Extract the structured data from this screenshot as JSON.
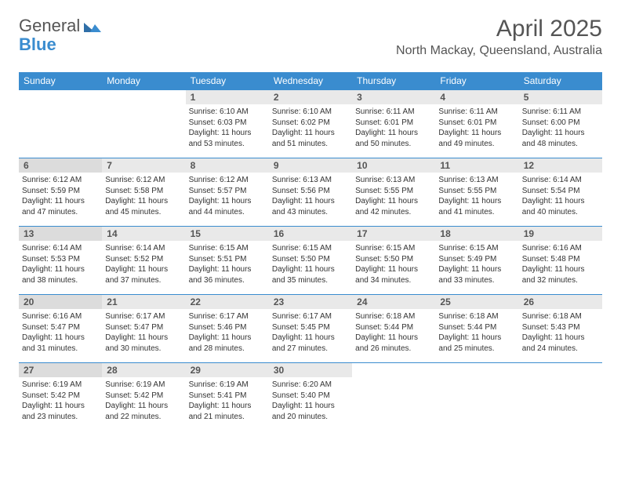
{
  "brand": {
    "part1": "General",
    "part2": "Blue"
  },
  "title": "April 2025",
  "location": "North Mackay, Queensland, Australia",
  "colors": {
    "accent": "#3a8ccf",
    "headerText": "#ffffff",
    "dayNumBg": "#e9e9e9",
    "sundayNumBg": "#dcdcdc",
    "border": "#3a8ccf",
    "text": "#333333",
    "muted": "#555555"
  },
  "dayNames": [
    "Sunday",
    "Monday",
    "Tuesday",
    "Wednesday",
    "Thursday",
    "Friday",
    "Saturday"
  ],
  "weeks": [
    [
      {
        "num": "",
        "lines": []
      },
      {
        "num": "",
        "lines": []
      },
      {
        "num": "1",
        "lines": [
          "Sunrise: 6:10 AM",
          "Sunset: 6:03 PM",
          "Daylight: 11 hours and 53 minutes."
        ]
      },
      {
        "num": "2",
        "lines": [
          "Sunrise: 6:10 AM",
          "Sunset: 6:02 PM",
          "Daylight: 11 hours and 51 minutes."
        ]
      },
      {
        "num": "3",
        "lines": [
          "Sunrise: 6:11 AM",
          "Sunset: 6:01 PM",
          "Daylight: 11 hours and 50 minutes."
        ]
      },
      {
        "num": "4",
        "lines": [
          "Sunrise: 6:11 AM",
          "Sunset: 6:01 PM",
          "Daylight: 11 hours and 49 minutes."
        ]
      },
      {
        "num": "5",
        "lines": [
          "Sunrise: 6:11 AM",
          "Sunset: 6:00 PM",
          "Daylight: 11 hours and 48 minutes."
        ]
      }
    ],
    [
      {
        "num": "6",
        "lines": [
          "Sunrise: 6:12 AM",
          "Sunset: 5:59 PM",
          "Daylight: 11 hours and 47 minutes."
        ]
      },
      {
        "num": "7",
        "lines": [
          "Sunrise: 6:12 AM",
          "Sunset: 5:58 PM",
          "Daylight: 11 hours and 45 minutes."
        ]
      },
      {
        "num": "8",
        "lines": [
          "Sunrise: 6:12 AM",
          "Sunset: 5:57 PM",
          "Daylight: 11 hours and 44 minutes."
        ]
      },
      {
        "num": "9",
        "lines": [
          "Sunrise: 6:13 AM",
          "Sunset: 5:56 PM",
          "Daylight: 11 hours and 43 minutes."
        ]
      },
      {
        "num": "10",
        "lines": [
          "Sunrise: 6:13 AM",
          "Sunset: 5:55 PM",
          "Daylight: 11 hours and 42 minutes."
        ]
      },
      {
        "num": "11",
        "lines": [
          "Sunrise: 6:13 AM",
          "Sunset: 5:55 PM",
          "Daylight: 11 hours and 41 minutes."
        ]
      },
      {
        "num": "12",
        "lines": [
          "Sunrise: 6:14 AM",
          "Sunset: 5:54 PM",
          "Daylight: 11 hours and 40 minutes."
        ]
      }
    ],
    [
      {
        "num": "13",
        "lines": [
          "Sunrise: 6:14 AM",
          "Sunset: 5:53 PM",
          "Daylight: 11 hours and 38 minutes."
        ]
      },
      {
        "num": "14",
        "lines": [
          "Sunrise: 6:14 AM",
          "Sunset: 5:52 PM",
          "Daylight: 11 hours and 37 minutes."
        ]
      },
      {
        "num": "15",
        "lines": [
          "Sunrise: 6:15 AM",
          "Sunset: 5:51 PM",
          "Daylight: 11 hours and 36 minutes."
        ]
      },
      {
        "num": "16",
        "lines": [
          "Sunrise: 6:15 AM",
          "Sunset: 5:50 PM",
          "Daylight: 11 hours and 35 minutes."
        ]
      },
      {
        "num": "17",
        "lines": [
          "Sunrise: 6:15 AM",
          "Sunset: 5:50 PM",
          "Daylight: 11 hours and 34 minutes."
        ]
      },
      {
        "num": "18",
        "lines": [
          "Sunrise: 6:15 AM",
          "Sunset: 5:49 PM",
          "Daylight: 11 hours and 33 minutes."
        ]
      },
      {
        "num": "19",
        "lines": [
          "Sunrise: 6:16 AM",
          "Sunset: 5:48 PM",
          "Daylight: 11 hours and 32 minutes."
        ]
      }
    ],
    [
      {
        "num": "20",
        "lines": [
          "Sunrise: 6:16 AM",
          "Sunset: 5:47 PM",
          "Daylight: 11 hours and 31 minutes."
        ]
      },
      {
        "num": "21",
        "lines": [
          "Sunrise: 6:17 AM",
          "Sunset: 5:47 PM",
          "Daylight: 11 hours and 30 minutes."
        ]
      },
      {
        "num": "22",
        "lines": [
          "Sunrise: 6:17 AM",
          "Sunset: 5:46 PM",
          "Daylight: 11 hours and 28 minutes."
        ]
      },
      {
        "num": "23",
        "lines": [
          "Sunrise: 6:17 AM",
          "Sunset: 5:45 PM",
          "Daylight: 11 hours and 27 minutes."
        ]
      },
      {
        "num": "24",
        "lines": [
          "Sunrise: 6:18 AM",
          "Sunset: 5:44 PM",
          "Daylight: 11 hours and 26 minutes."
        ]
      },
      {
        "num": "25",
        "lines": [
          "Sunrise: 6:18 AM",
          "Sunset: 5:44 PM",
          "Daylight: 11 hours and 25 minutes."
        ]
      },
      {
        "num": "26",
        "lines": [
          "Sunrise: 6:18 AM",
          "Sunset: 5:43 PM",
          "Daylight: 11 hours and 24 minutes."
        ]
      }
    ],
    [
      {
        "num": "27",
        "lines": [
          "Sunrise: 6:19 AM",
          "Sunset: 5:42 PM",
          "Daylight: 11 hours and 23 minutes."
        ]
      },
      {
        "num": "28",
        "lines": [
          "Sunrise: 6:19 AM",
          "Sunset: 5:42 PM",
          "Daylight: 11 hours and 22 minutes."
        ]
      },
      {
        "num": "29",
        "lines": [
          "Sunrise: 6:19 AM",
          "Sunset: 5:41 PM",
          "Daylight: 11 hours and 21 minutes."
        ]
      },
      {
        "num": "30",
        "lines": [
          "Sunrise: 6:20 AM",
          "Sunset: 5:40 PM",
          "Daylight: 11 hours and 20 minutes."
        ]
      },
      {
        "num": "",
        "lines": []
      },
      {
        "num": "",
        "lines": []
      },
      {
        "num": "",
        "lines": []
      }
    ]
  ]
}
